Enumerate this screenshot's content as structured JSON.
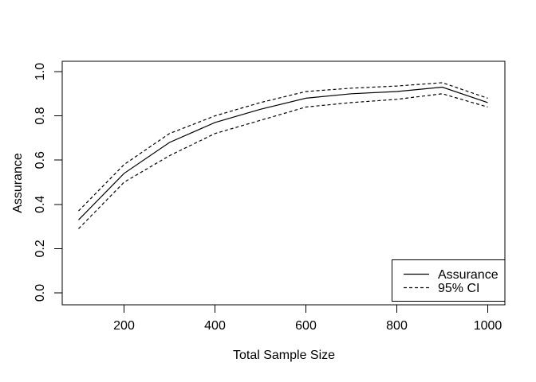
{
  "figure": {
    "background_color": "#ffffff",
    "line_color": "#000000"
  },
  "chart_data": {
    "type": "line",
    "title": "",
    "xlabel": "Total Sample Size",
    "ylabel": "Assurance",
    "xlim": [
      100,
      1000
    ],
    "ylim": [
      0.0,
      1.0
    ],
    "grid": false,
    "x_ticks": [
      200,
      400,
      600,
      800,
      1000
    ],
    "y_ticks": [
      "0.0",
      "0.2",
      "0.4",
      "0.6",
      "0.8",
      "1.0"
    ],
    "x": [
      100,
      200,
      300,
      400,
      500,
      600,
      700,
      800,
      900,
      1000
    ],
    "series": [
      {
        "name": "Assurance",
        "line_style": "solid",
        "color": "#000000",
        "values": [
          0.33,
          0.54,
          0.68,
          0.77,
          0.83,
          0.88,
          0.9,
          0.91,
          0.93,
          0.86
        ]
      },
      {
        "name": "95% CI upper",
        "line_style": "dashed",
        "color": "#000000",
        "values": [
          0.37,
          0.58,
          0.72,
          0.8,
          0.86,
          0.91,
          0.925,
          0.935,
          0.95,
          0.88
        ]
      },
      {
        "name": "95% CI lower",
        "line_style": "dashed",
        "color": "#000000",
        "values": [
          0.29,
          0.5,
          0.62,
          0.72,
          0.78,
          0.84,
          0.86,
          0.875,
          0.9,
          0.84
        ]
      }
    ],
    "legend": {
      "position": "bottomright",
      "entries": [
        {
          "label": "Assurance",
          "line_style": "solid"
        },
        {
          "label": "95% CI",
          "line_style": "dashed"
        }
      ]
    }
  }
}
